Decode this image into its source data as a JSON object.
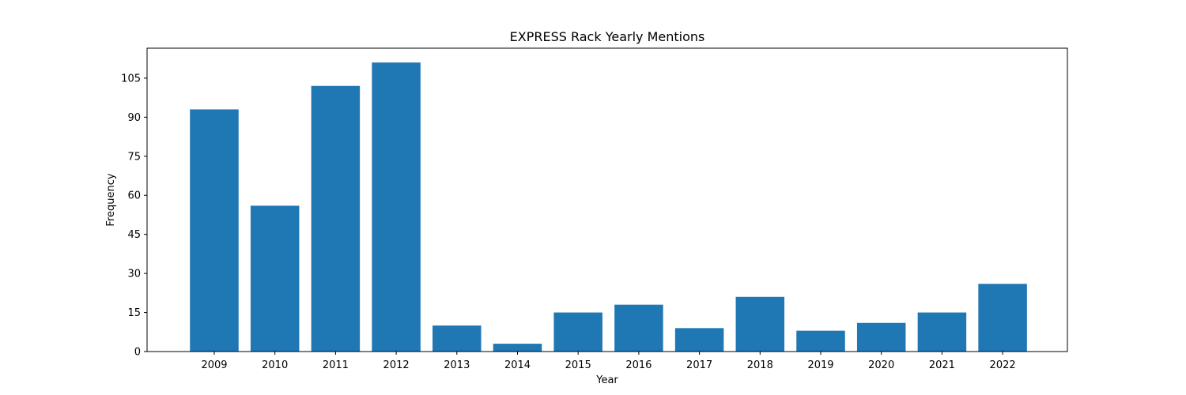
{
  "chart_data": {
    "type": "bar",
    "title": "EXPRESS Rack Yearly Mentions",
    "xlabel": "Year",
    "ylabel": "Frequency",
    "categories": [
      "2009",
      "2010",
      "2011",
      "2012",
      "2013",
      "2014",
      "2015",
      "2016",
      "2017",
      "2018",
      "2019",
      "2020",
      "2021",
      "2022"
    ],
    "values": [
      93,
      56,
      102,
      111,
      10,
      3,
      15,
      18,
      9,
      21,
      8,
      11,
      15,
      26
    ],
    "ylim": [
      0,
      116.5
    ],
    "yticks": [
      0,
      15,
      30,
      45,
      60,
      75,
      90,
      105
    ],
    "bar_color": "#1f77b4",
    "grid": false,
    "legend": "none"
  }
}
